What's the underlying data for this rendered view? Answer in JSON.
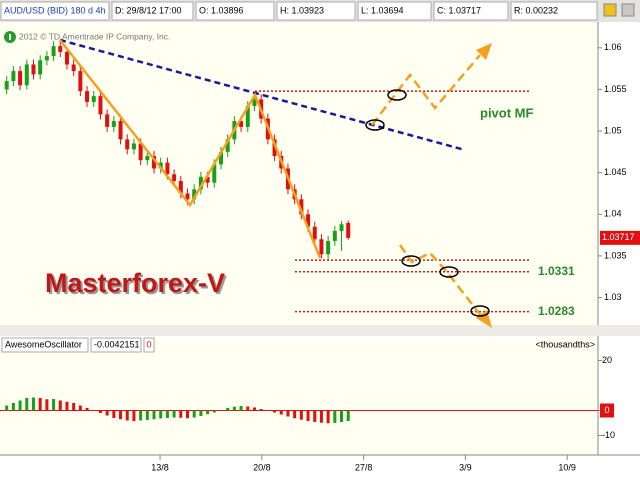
{
  "header": {
    "symbol": "AUD/USD (BID) 180 d 4h",
    "date": "D: 29/8/12 17:00",
    "open": "O: 1.03896",
    "high": "H: 1.03923",
    "low": "L: 1.03694",
    "close": "C: 1.03717",
    "range": "R: 0.00232"
  },
  "chart_data": [
    {
      "type": "candlestick",
      "x": [
        1,
        2,
        3,
        4,
        5,
        6,
        7,
        8,
        9,
        10,
        11,
        12,
        13,
        14,
        15,
        16,
        17,
        18,
        19,
        20,
        21,
        22,
        23,
        24,
        25,
        26,
        27,
        28,
        29,
        30,
        31,
        32,
        33,
        34,
        35,
        36,
        37,
        38,
        39,
        40,
        41,
        42,
        43,
        44,
        45,
        46,
        47,
        48,
        49,
        50,
        51,
        52
      ],
      "open": [
        1.055,
        1.056,
        1.0572,
        1.0555,
        1.058,
        1.0568,
        1.0585,
        1.059,
        1.0602,
        1.0595,
        1.058,
        1.0572,
        1.0548,
        1.0535,
        1.0542,
        1.052,
        1.0505,
        1.0512,
        1.049,
        1.0478,
        1.0485,
        1.0465,
        1.047,
        1.0455,
        1.0462,
        1.0448,
        1.044,
        1.0425,
        1.0418,
        1.043,
        1.0445,
        1.0438,
        1.046,
        1.0475,
        1.049,
        1.0512,
        1.0505,
        1.053,
        1.0538,
        1.0515,
        1.049,
        1.047,
        1.0455,
        1.043,
        1.0418,
        1.04,
        1.0385,
        1.037,
        1.0352,
        1.0368,
        1.038,
        1.03896
      ],
      "high": [
        1.0566,
        1.0578,
        1.0578,
        1.0586,
        1.0586,
        1.0591,
        1.0596,
        1.0608,
        1.061,
        1.0601,
        1.0586,
        1.0578,
        1.0554,
        1.0548,
        1.0548,
        1.0526,
        1.0518,
        1.0518,
        1.0496,
        1.0491,
        1.0491,
        1.0476,
        1.0476,
        1.0468,
        1.0468,
        1.0454,
        1.0446,
        1.0431,
        1.0436,
        1.0451,
        1.0451,
        1.0466,
        1.0481,
        1.0496,
        1.0518,
        1.0518,
        1.0536,
        1.0545,
        1.0544,
        1.0521,
        1.0496,
        1.0476,
        1.0461,
        1.0436,
        1.0424,
        1.0406,
        1.0391,
        1.0376,
        1.0374,
        1.0386,
        1.0392,
        1.03923
      ],
      "low": [
        1.0544,
        1.0554,
        1.0549,
        1.055,
        1.0562,
        1.0562,
        1.0579,
        1.0584,
        1.0589,
        1.0574,
        1.0566,
        1.0542,
        1.0529,
        1.0529,
        1.0514,
        1.0499,
        1.0499,
        1.0484,
        1.0472,
        1.0472,
        1.0459,
        1.0459,
        1.0449,
        1.0449,
        1.0442,
        1.0434,
        1.0419,
        1.0411,
        1.0412,
        1.0424,
        1.0432,
        1.0432,
        1.0454,
        1.0469,
        1.0484,
        1.0499,
        1.0499,
        1.0524,
        1.0509,
        1.0484,
        1.0464,
        1.0449,
        1.0424,
        1.0412,
        1.0394,
        1.0379,
        1.0364,
        1.0347,
        1.0346,
        1.0362,
        1.0356,
        1.03694
      ],
      "close": [
        1.056,
        1.0572,
        1.0555,
        1.058,
        1.0568,
        1.0585,
        1.059,
        1.0602,
        1.0595,
        1.058,
        1.0572,
        1.0548,
        1.0535,
        1.0542,
        1.052,
        1.0505,
        1.0512,
        1.049,
        1.0478,
        1.0485,
        1.0465,
        1.047,
        1.0455,
        1.0462,
        1.0448,
        1.044,
        1.0425,
        1.0418,
        1.043,
        1.0445,
        1.0438,
        1.046,
        1.0475,
        1.049,
        1.0512,
        1.0505,
        1.053,
        1.0538,
        1.0515,
        1.049,
        1.047,
        1.0455,
        1.043,
        1.0418,
        1.04,
        1.0385,
        1.037,
        1.0352,
        1.0368,
        1.038,
        1.0388,
        1.03717
      ],
      "up_color": "#18a018",
      "down_color": "#e01010",
      "xlim": [
        0,
        89.3
      ],
      "ylim": [
        1.0267,
        1.0631
      ],
      "yticks": [
        1.03,
        1.035,
        1.04,
        1.045,
        1.05,
        1.055,
        1.06
      ],
      "levels": [
        1.0548,
        1.0345
      ],
      "labeled_levels": [
        1.0331,
        1.0283
      ],
      "level_color": "#d01818",
      "annotation": "pivot MF",
      "watermark": "Masterforex-V",
      "copyright": "2012 © TD Ameritrade IP Company, Inc."
    },
    {
      "type": "bar",
      "title": "AwesomeOscillator",
      "reading": "-0.0042151",
      "shift": "0",
      "scale": "<thousandths>",
      "x": [
        1,
        2,
        3,
        4,
        5,
        6,
        7,
        8,
        9,
        10,
        11,
        12,
        13,
        14,
        15,
        16,
        17,
        18,
        19,
        20,
        21,
        22,
        23,
        24,
        25,
        26,
        27,
        28,
        29,
        30,
        31,
        32,
        33,
        34,
        35,
        36,
        37,
        38,
        39,
        40,
        41,
        42,
        43,
        44,
        45,
        46,
        47,
        48,
        49,
        50,
        51,
        52
      ],
      "values": [
        2,
        3,
        4,
        5,
        5.2,
        5,
        4.5,
        4.6,
        4,
        3.5,
        3,
        2,
        1,
        0,
        -1,
        -2,
        -3,
        -3.5,
        -4,
        -4.2,
        -4,
        -3.8,
        -3.5,
        -3.2,
        -3,
        -2.8,
        -2.9,
        -3.1,
        -2.8,
        -2.2,
        -1.5,
        -0.8,
        0.2,
        1,
        1.5,
        1.8,
        1.6,
        1.2,
        0.6,
        0,
        -0.8,
        -1.6,
        -2.4,
        -3.1,
        -3.7,
        -4.2,
        -4.6,
        -4.9,
        -5.1,
        -5,
        -4.6,
        -4.2151
      ],
      "up_color": "#18a018",
      "down_color": "#e01010",
      "xlim": [
        0,
        89.3
      ],
      "ylim": [
        -17.8,
        29
      ],
      "yticks": [
        -10,
        0,
        20
      ],
      "xticks": [
        {
          "value": 23.9,
          "label": "13/8"
        },
        {
          "value": 39.1,
          "label": "20/8"
        },
        {
          "value": 54.3,
          "label": "27/8"
        },
        {
          "value": 69.5,
          "label": "3/9"
        },
        {
          "value": 84.7,
          "label": "10/9"
        }
      ]
    }
  ]
}
